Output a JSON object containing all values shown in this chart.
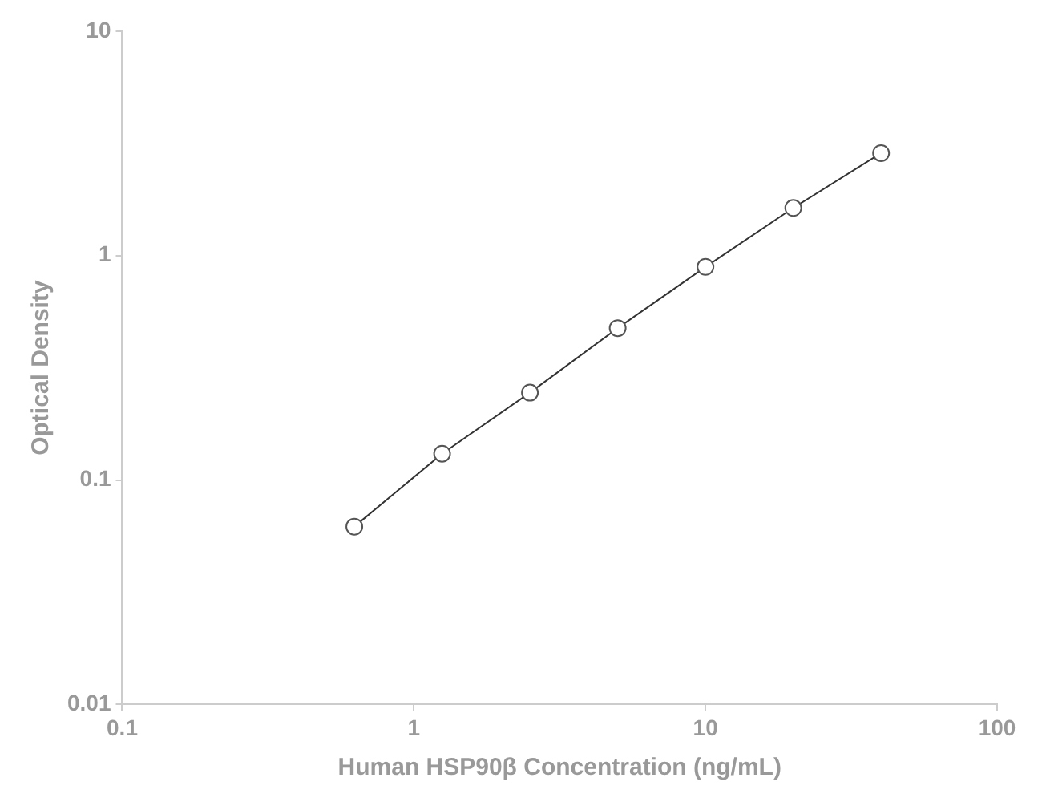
{
  "chart_data": {
    "type": "line",
    "xlabel": "Human HSP90β Concentration (ng/mL)",
    "ylabel": "Optical Density",
    "log": "xy",
    "marker": "circle",
    "line_style": "solid",
    "grid": false,
    "legend": false,
    "xlim": [
      0.1,
      100
    ],
    "xticks": [
      0.1,
      1,
      10,
      100
    ],
    "ylim": [
      0.01,
      10
    ],
    "yticks": [
      0.01,
      0.1,
      1,
      10
    ],
    "series": [
      {
        "color": "#333333",
        "x": [
          0.625,
          1.25,
          2.5,
          5,
          10,
          20,
          40
        ],
        "values": [
          0.062,
          0.131,
          0.245,
          0.475,
          0.89,
          1.63,
          2.86
        ]
      }
    ]
  }
}
